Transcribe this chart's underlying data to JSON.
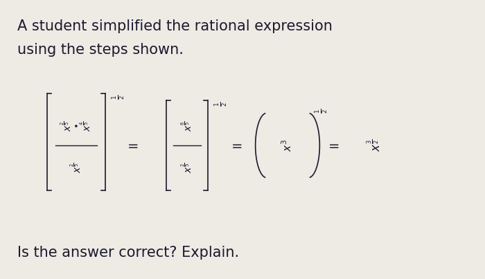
{
  "title_line1": "A student simplified the rational expression",
  "title_line2": "using the steps shown.",
  "background_color": "#eeeae4",
  "text_color": "#1a1a2e",
  "footer_text": "Is the answer correct? Explain.",
  "title_fontsize": 15,
  "footer_fontsize": 15,
  "math_fontsize": 13
}
